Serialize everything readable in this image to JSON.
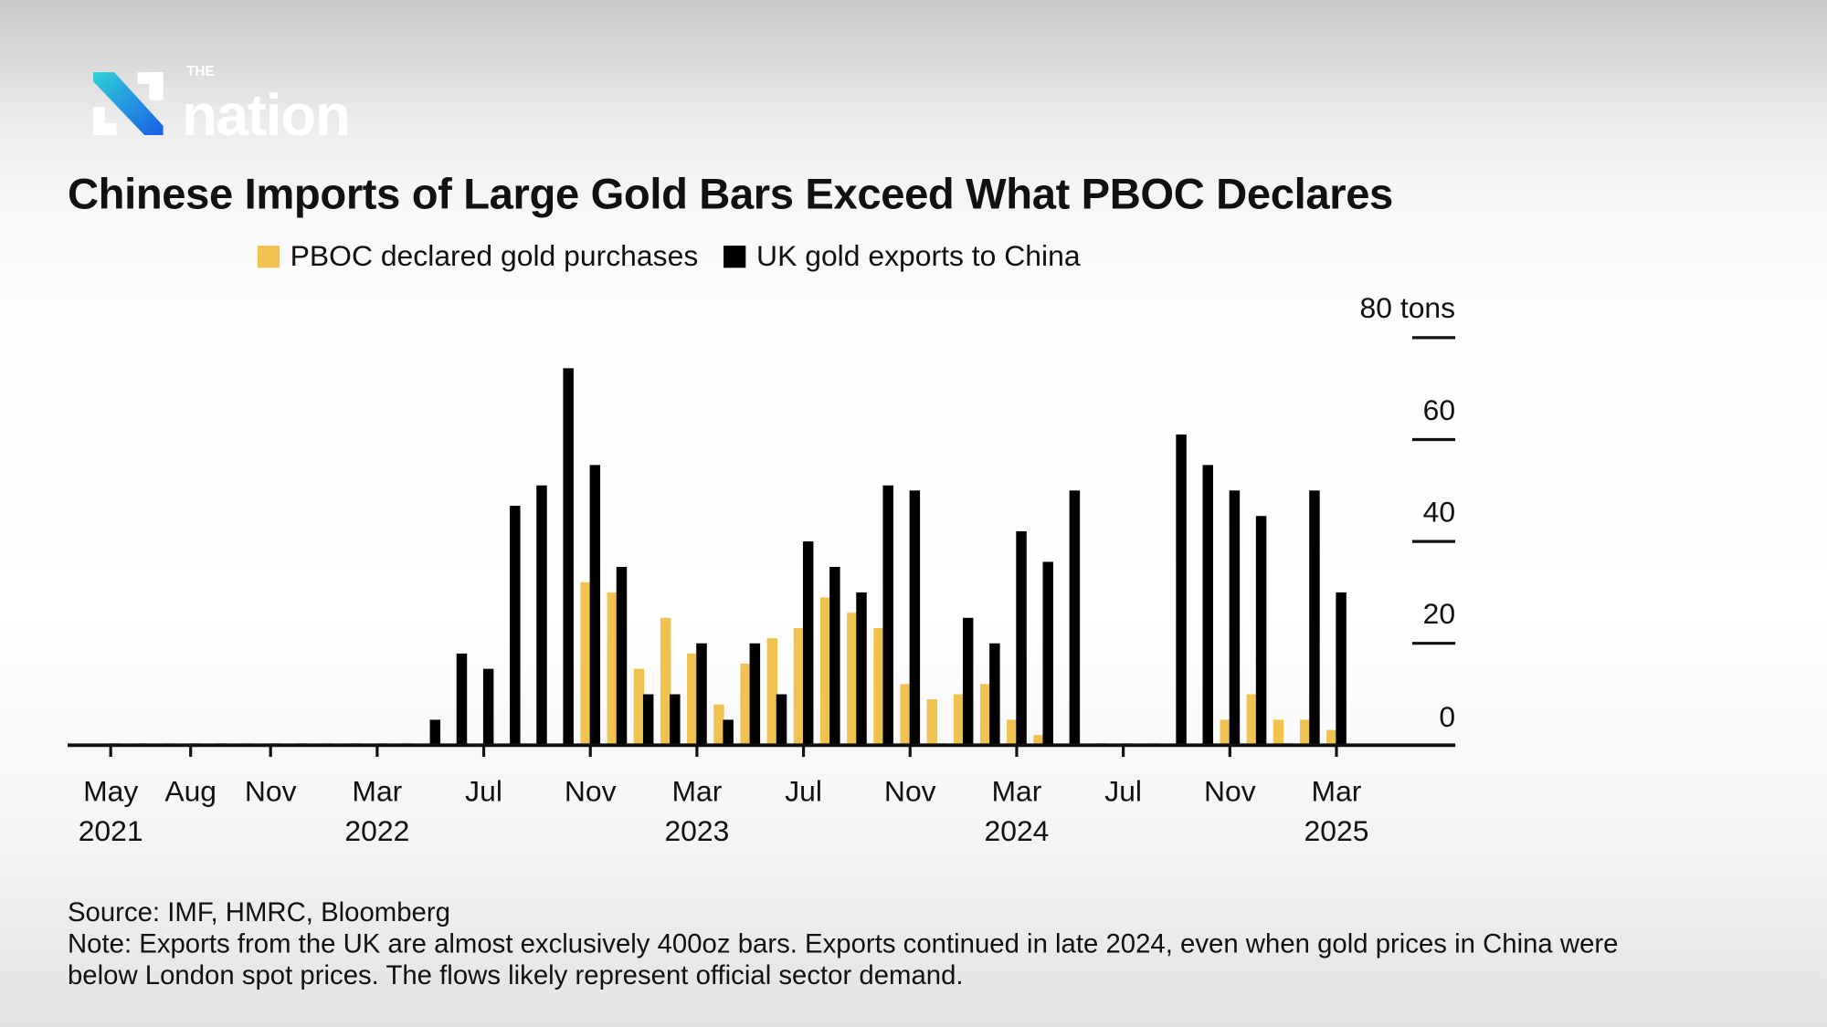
{
  "brand": {
    "logo_text": "THE nation",
    "colors": {
      "logo_gradient_start": "#2fd0d8",
      "logo_gradient_end": "#1a5fe6"
    }
  },
  "chart_data": {
    "type": "bar",
    "title": "Chinese Imports of Large Gold Bars Exceed What PBOC Declares",
    "unit_label": "80 tons",
    "yaxis": {
      "position": "right",
      "ticks": [
        0,
        20,
        40,
        60,
        80
      ],
      "tick_labels": [
        "0",
        "20",
        "40",
        "60",
        "80 tons"
      ],
      "ylim": [
        0,
        80
      ]
    },
    "xaxis": {
      "tick_labels": [
        {
          "month": "2021-05",
          "label": "May",
          "year": "2021"
        },
        {
          "month": "2021-08",
          "label": "Aug",
          "year": ""
        },
        {
          "month": "2021-11",
          "label": "Nov",
          "year": ""
        },
        {
          "month": "2022-03",
          "label": "Mar",
          "year": "2022"
        },
        {
          "month": "2022-07",
          "label": "Jul",
          "year": ""
        },
        {
          "month": "2022-11",
          "label": "Nov",
          "year": ""
        },
        {
          "month": "2023-03",
          "label": "Mar",
          "year": "2023"
        },
        {
          "month": "2023-07",
          "label": "Jul",
          "year": ""
        },
        {
          "month": "2023-11",
          "label": "Nov",
          "year": ""
        },
        {
          "month": "2024-03",
          "label": "Mar",
          "year": "2024"
        },
        {
          "month": "2024-07",
          "label": "Jul",
          "year": ""
        },
        {
          "month": "2024-11",
          "label": "Nov",
          "year": ""
        },
        {
          "month": "2025-03",
          "label": "Mar",
          "year": "2025"
        }
      ]
    },
    "legend_placement": "top",
    "grid": false,
    "categories": [
      "2021-05",
      "2021-06",
      "2021-07",
      "2021-08",
      "2021-09",
      "2021-10",
      "2021-11",
      "2021-12",
      "2022-01",
      "2022-02",
      "2022-03",
      "2022-04",
      "2022-05",
      "2022-06",
      "2022-07",
      "2022-08",
      "2022-09",
      "2022-10",
      "2022-11",
      "2022-12",
      "2023-01",
      "2023-02",
      "2023-03",
      "2023-04",
      "2023-05",
      "2023-06",
      "2023-07",
      "2023-08",
      "2023-09",
      "2023-10",
      "2023-11",
      "2023-12",
      "2024-01",
      "2024-02",
      "2024-03",
      "2024-04",
      "2024-05",
      "2024-06",
      "2024-07",
      "2024-08",
      "2024-09",
      "2024-10",
      "2024-11",
      "2024-12",
      "2025-01",
      "2025-02",
      "2025-03"
    ],
    "series": [
      {
        "name": "PBOC declared gold purchases",
        "color": "#f0c24f",
        "values": [
          0,
          0,
          0,
          0,
          0,
          0,
          0,
          0,
          0,
          0,
          0,
          0,
          0,
          0,
          0,
          0,
          0,
          0,
          32,
          30,
          15,
          25,
          18,
          8,
          16,
          21,
          23,
          29,
          26,
          23,
          12,
          9,
          10,
          12,
          5,
          2,
          0,
          0,
          0,
          0,
          0,
          0,
          5,
          10,
          5,
          5,
          3
        ]
      },
      {
        "name": "UK gold exports to China",
        "color": "#000000",
        "values": [
          0,
          0,
          0,
          0,
          0,
          0,
          0,
          0,
          0,
          0,
          0,
          0,
          5,
          18,
          15,
          47,
          51,
          74,
          55,
          35,
          10,
          10,
          20,
          5,
          20,
          10,
          40,
          35,
          30,
          51,
          50,
          0,
          25,
          20,
          42,
          36,
          50,
          0,
          0,
          0,
          61,
          55,
          50,
          45,
          0,
          50,
          30
        ]
      }
    ]
  },
  "footer": {
    "source": "Source: IMF, HMRC, Bloomberg",
    "note_line1": "Note: Exports from the UK are almost exclusively 400oz bars. Exports continued in late 2024, even when gold prices in China were",
    "note_line2": "below London spot prices. The flows likely represent official sector demand."
  }
}
